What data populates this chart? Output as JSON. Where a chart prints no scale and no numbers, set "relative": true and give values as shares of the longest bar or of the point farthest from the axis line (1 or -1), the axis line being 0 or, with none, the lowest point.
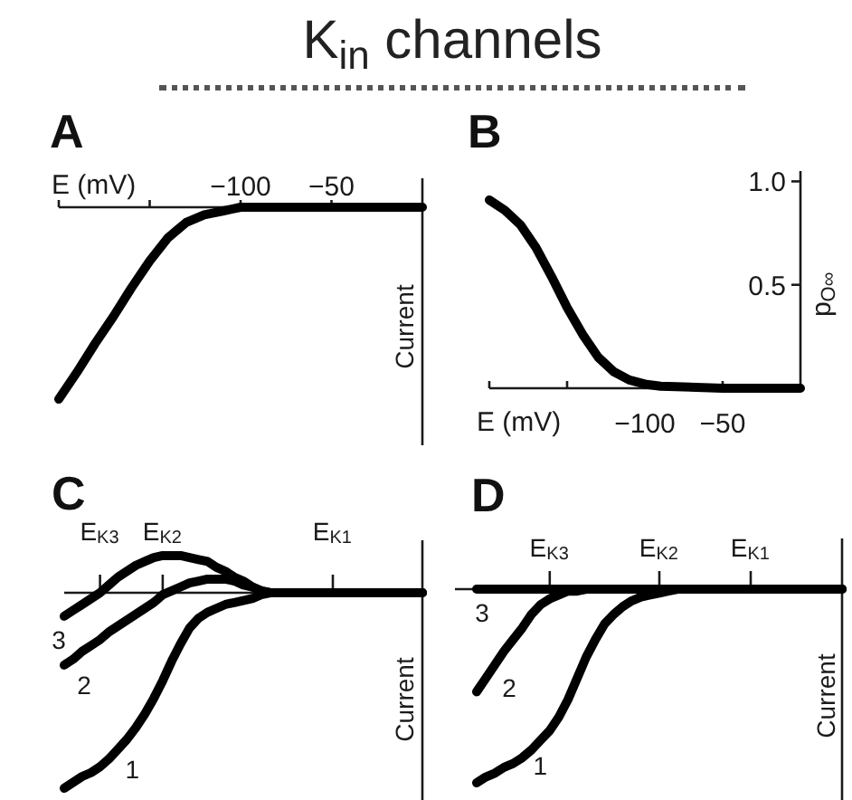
{
  "chart_data": [
    {
      "type": "line",
      "title": "A",
      "annotations": [
        "K$_{in}$ channels"
      ],
      "xlabel": "E (mV)",
      "ylabel": "Current",
      "relative": true,
      "xlim": [
        -200,
        0
      ],
      "xticks": [
        {
          "value": -200,
          "label": null
        },
        {
          "value": -150,
          "label": null
        },
        {
          "value": -100,
          "label": "−100"
        },
        {
          "value": -50,
          "label": "−50"
        }
      ],
      "x": [
        -200,
        -190,
        -180,
        -170,
        -160,
        -150,
        -145,
        -140,
        -135,
        -130,
        -125,
        -120,
        -115,
        -110,
        -105,
        -100,
        -50,
        0
      ],
      "values": [
        -1.0,
        -0.86,
        -0.71,
        -0.57,
        -0.42,
        -0.28,
        -0.22,
        -0.16,
        -0.12,
        -0.08,
        -0.06,
        -0.04,
        -0.03,
        -0.02,
        -0.01,
        0,
        0,
        0
      ],
      "color": "#000000"
    },
    {
      "type": "line",
      "title": "B",
      "xlabel": "E (mV)",
      "ylabel": "p$_{O∞}$",
      "xlim": [
        -200,
        0
      ],
      "ylim": [
        0,
        1.05
      ],
      "xticks": [
        {
          "value": -200,
          "label": null
        },
        {
          "value": -150,
          "label": null
        },
        {
          "value": -100,
          "label": "−100"
        },
        {
          "value": -50,
          "label": "−50"
        }
      ],
      "yticks": [
        {
          "value": 0.5,
          "label": "0.5"
        },
        {
          "value": 1.0,
          "label": "1.0"
        }
      ],
      "x": [
        -200,
        -190,
        -180,
        -170,
        -160,
        -150,
        -140,
        -130,
        -120,
        -110,
        -100,
        -90,
        -50,
        0
      ],
      "values": [
        0.91,
        0.86,
        0.79,
        0.68,
        0.54,
        0.39,
        0.26,
        0.15,
        0.08,
        0.04,
        0.02,
        0.01,
        0,
        0
      ],
      "color": "#000000"
    },
    {
      "type": "line",
      "title": "C",
      "ylabel": "Current",
      "relative": true,
      "categories": [
        null,
        null,
        null,
        null,
        "E$_{K3}$",
        null,
        null,
        null,
        null,
        null,
        null,
        "E$_{K2}$",
        null,
        null,
        null,
        null,
        null,
        null,
        null,
        null,
        null,
        null,
        null,
        null,
        null,
        null,
        null,
        null,
        null,
        null,
        "E$_{K1}$",
        null,
        null,
        null,
        null,
        null,
        null,
        null,
        null,
        null,
        null
      ],
      "series": [
        {
          "name": "1",
          "color": "#000000",
          "values": [
            -1.0,
            -0.97,
            -0.94,
            -0.92,
            -0.89,
            -0.85,
            -0.8,
            -0.75,
            -0.69,
            -0.62,
            -0.54,
            -0.45,
            -0.35,
            -0.26,
            -0.18,
            -0.13,
            -0.1,
            -0.08,
            -0.06,
            -0.05,
            -0.04,
            -0.03,
            -0.01,
            0,
            0,
            0,
            0,
            0,
            0,
            0,
            0,
            0,
            0,
            0,
            0,
            0,
            0,
            0,
            0,
            0,
            0
          ]
        },
        {
          "name": "2",
          "color": "#000000",
          "values": [
            -0.37,
            -0.34,
            -0.3,
            -0.27,
            -0.24,
            -0.2,
            -0.17,
            -0.14,
            -0.11,
            -0.08,
            -0.05,
            -0.01,
            0.01,
            0.03,
            0.05,
            0.06,
            0.07,
            0.07,
            0.07,
            0.06,
            0.04,
            0.03,
            0.01,
            0,
            0,
            0,
            0,
            0,
            0,
            0,
            0,
            0,
            0,
            0,
            0,
            0,
            0,
            0,
            0,
            0,
            0
          ]
        },
        {
          "name": "3",
          "color": "#000000",
          "values": [
            -0.12,
            -0.09,
            -0.06,
            -0.03,
            0,
            0.04,
            0.08,
            0.11,
            0.14,
            0.16,
            0.18,
            0.19,
            0.19,
            0.19,
            0.18,
            0.17,
            0.16,
            0.13,
            0.11,
            0.08,
            0.06,
            0.03,
            0.01,
            0,
            0,
            0,
            0,
            0,
            0,
            0,
            0,
            0,
            0,
            0,
            0,
            0,
            0,
            0,
            0,
            0,
            0
          ]
        }
      ]
    },
    {
      "type": "line",
      "title": "D",
      "ylabel": "Current",
      "relative": true,
      "categories": [
        null,
        null,
        null,
        null,
        null,
        null,
        null,
        null,
        "E$_{K3}$",
        null,
        null,
        null,
        null,
        null,
        null,
        null,
        null,
        null,
        null,
        null,
        "E$_{K2}$",
        null,
        null,
        null,
        null,
        null,
        null,
        null,
        null,
        null,
        "E$_{K1}$",
        null,
        null,
        null,
        null,
        null,
        null,
        null,
        null,
        null,
        null
      ],
      "series": [
        {
          "name": "1",
          "color": "#000000",
          "values": [
            -1.0,
            -0.97,
            -0.95,
            -0.92,
            -0.9,
            -0.87,
            -0.83,
            -0.78,
            -0.73,
            -0.66,
            -0.57,
            -0.46,
            -0.35,
            -0.26,
            -0.18,
            -0.13,
            -0.09,
            -0.06,
            -0.04,
            -0.03,
            -0.02,
            -0.01,
            0,
            0,
            0,
            0,
            0,
            0,
            0,
            0,
            0,
            0,
            0,
            0,
            0,
            0,
            0,
            0,
            0,
            0,
            0
          ]
        },
        {
          "name": "2",
          "color": "#000000",
          "values": [
            -0.53,
            -0.46,
            -0.39,
            -0.32,
            -0.26,
            -0.2,
            -0.13,
            -0.08,
            -0.05,
            -0.03,
            -0.01,
            -0.01,
            0,
            0,
            0,
            0,
            0,
            0,
            0,
            0,
            0,
            0,
            0,
            0,
            0,
            0,
            0,
            0,
            0,
            0,
            0,
            0,
            0,
            0,
            0,
            0,
            0,
            0,
            0,
            0,
            0
          ]
        },
        {
          "name": "3",
          "color": "#000000",
          "values": [
            0,
            0,
            0,
            0,
            0,
            0,
            0,
            0,
            0,
            0,
            0,
            0,
            0,
            0,
            0,
            0,
            0,
            0,
            0,
            0,
            0,
            0,
            0,
            0,
            0,
            0,
            0,
            0,
            0,
            0,
            0,
            0,
            0,
            0,
            0,
            0,
            0,
            0,
            0,
            0,
            0
          ]
        }
      ]
    }
  ]
}
